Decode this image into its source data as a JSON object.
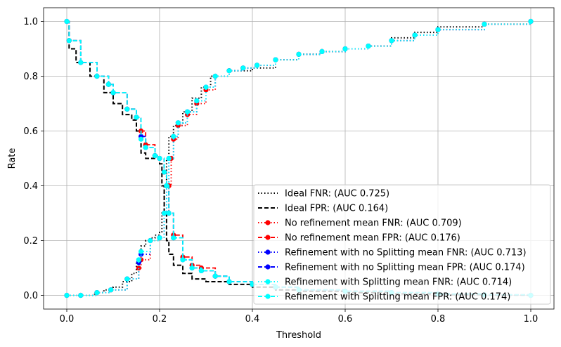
{
  "chart_data": {
    "type": "line",
    "title": "",
    "xlabel": "Threshold",
    "ylabel": "Rate",
    "xlim": [
      -0.05,
      1.05
    ],
    "ylim": [
      -0.05,
      1.05
    ],
    "xticks": [
      0.0,
      0.2,
      0.4,
      0.6,
      0.8,
      1.0
    ],
    "xtick_labels": [
      "0.0",
      "0.2",
      "0.4",
      "0.6",
      "0.8",
      "1.0"
    ],
    "yticks": [
      0.0,
      0.2,
      0.4,
      0.6,
      0.8,
      1.0
    ],
    "ytick_labels": [
      "0.0",
      "0.2",
      "0.4",
      "0.6",
      "0.8",
      "1.0"
    ],
    "grid": true,
    "legend_position": "lower-right",
    "series": [
      {
        "name": "Ideal FNR: (AUC 0.725)",
        "color": "#000000",
        "dash": "dotted",
        "marker": "none",
        "x": [
          0.0,
          0.03,
          0.06,
          0.08,
          0.1,
          0.12,
          0.14,
          0.15,
          0.16,
          0.17,
          0.18,
          0.19,
          0.2,
          0.205,
          0.21,
          0.215,
          0.22,
          0.23,
          0.25,
          0.27,
          0.29,
          0.31,
          0.35,
          0.4,
          0.45,
          0.5,
          0.55,
          0.6,
          0.65,
          0.7,
          0.75,
          0.8,
          0.9,
          1.0
        ],
        "y": [
          0.0,
          0.0,
          0.01,
          0.02,
          0.03,
          0.05,
          0.08,
          0.12,
          0.18,
          0.2,
          0.21,
          0.22,
          0.23,
          0.3,
          0.4,
          0.5,
          0.58,
          0.62,
          0.67,
          0.72,
          0.76,
          0.8,
          0.82,
          0.83,
          0.86,
          0.88,
          0.89,
          0.9,
          0.91,
          0.94,
          0.96,
          0.98,
          0.99,
          1.0
        ]
      },
      {
        "name": "Ideal FPR: (AUC 0.164)",
        "color": "#000000",
        "dash": "dashed",
        "marker": "none",
        "x": [
          0.0,
          0.005,
          0.02,
          0.05,
          0.08,
          0.1,
          0.12,
          0.14,
          0.15,
          0.16,
          0.17,
          0.19,
          0.2,
          0.205,
          0.21,
          0.215,
          0.22,
          0.23,
          0.25,
          0.27,
          0.3,
          0.35,
          0.4,
          0.45,
          0.5,
          0.6,
          0.7,
          0.8,
          0.9,
          1.0
        ],
        "y": [
          1.0,
          0.9,
          0.85,
          0.8,
          0.74,
          0.7,
          0.66,
          0.64,
          0.6,
          0.52,
          0.5,
          0.5,
          0.48,
          0.4,
          0.3,
          0.2,
          0.15,
          0.11,
          0.08,
          0.06,
          0.05,
          0.04,
          0.03,
          0.02,
          0.015,
          0.01,
          0.005,
          0.003,
          0.001,
          0.0
        ]
      },
      {
        "name": "No refinement mean FNR: (AUC 0.709)",
        "color": "#ff0000",
        "dash": "dotted",
        "marker": "circle",
        "x": [
          0.0,
          0.03,
          0.065,
          0.095,
          0.13,
          0.155,
          0.16,
          0.18,
          0.2,
          0.21,
          0.22,
          0.225,
          0.23,
          0.24,
          0.26,
          0.28,
          0.3,
          0.32,
          0.35,
          0.38,
          0.41,
          0.45,
          0.5,
          0.55,
          0.6,
          0.65,
          0.7,
          0.75,
          0.8,
          0.9,
          1.0
        ],
        "y": [
          0.0,
          0.0,
          0.01,
          0.02,
          0.06,
          0.1,
          0.13,
          0.2,
          0.21,
          0.3,
          0.4,
          0.5,
          0.57,
          0.62,
          0.66,
          0.7,
          0.75,
          0.8,
          0.82,
          0.83,
          0.84,
          0.86,
          0.88,
          0.89,
          0.9,
          0.91,
          0.93,
          0.95,
          0.97,
          0.99,
          1.0
        ]
      },
      {
        "name": "No refinement mean FPR: (AUC 0.176)",
        "color": "#ff0000",
        "dash": "dashed",
        "marker": "circle",
        "x": [
          0.0,
          0.005,
          0.03,
          0.065,
          0.09,
          0.1,
          0.13,
          0.15,
          0.16,
          0.17,
          0.19,
          0.2,
          0.21,
          0.215,
          0.22,
          0.23,
          0.25,
          0.27,
          0.29,
          0.32,
          0.35,
          0.4,
          0.45,
          0.5,
          0.6,
          0.7,
          0.8,
          0.9,
          1.0
        ],
        "y": [
          1.0,
          0.93,
          0.85,
          0.8,
          0.77,
          0.74,
          0.68,
          0.65,
          0.6,
          0.55,
          0.51,
          0.5,
          0.45,
          0.4,
          0.3,
          0.22,
          0.14,
          0.11,
          0.1,
          0.07,
          0.05,
          0.04,
          0.03,
          0.02,
          0.015,
          0.01,
          0.005,
          0.002,
          0.0
        ]
      },
      {
        "name": "Refinement with no Splitting mean FNR: (AUC 0.713)",
        "color": "#0000ff",
        "dash": "dotted",
        "marker": "circle",
        "x": [
          0.0,
          0.03,
          0.065,
          0.095,
          0.13,
          0.155,
          0.16,
          0.18,
          0.2,
          0.21,
          0.215,
          0.22,
          0.23,
          0.24,
          0.26,
          0.28,
          0.3,
          0.32,
          0.35,
          0.38,
          0.41,
          0.45,
          0.5,
          0.55,
          0.6,
          0.65,
          0.7,
          0.75,
          0.8,
          0.9,
          1.0
        ],
        "y": [
          0.0,
          0.0,
          0.01,
          0.02,
          0.06,
          0.12,
          0.15,
          0.2,
          0.21,
          0.3,
          0.4,
          0.5,
          0.58,
          0.63,
          0.67,
          0.71,
          0.76,
          0.8,
          0.82,
          0.83,
          0.84,
          0.86,
          0.88,
          0.89,
          0.9,
          0.91,
          0.93,
          0.95,
          0.97,
          0.99,
          1.0
        ]
      },
      {
        "name": "Refinement with no Splitting mean FPR: (AUC 0.174)",
        "color": "#0000ff",
        "dash": "dashed",
        "marker": "circle",
        "x": [
          0.0,
          0.005,
          0.03,
          0.065,
          0.09,
          0.1,
          0.13,
          0.15,
          0.16,
          0.17,
          0.19,
          0.2,
          0.21,
          0.215,
          0.22,
          0.23,
          0.25,
          0.27,
          0.29,
          0.32,
          0.35,
          0.4,
          0.45,
          0.5,
          0.6,
          0.7,
          0.8,
          0.9,
          1.0
        ],
        "y": [
          1.0,
          0.93,
          0.85,
          0.8,
          0.77,
          0.74,
          0.68,
          0.65,
          0.58,
          0.54,
          0.51,
          0.5,
          0.45,
          0.4,
          0.3,
          0.21,
          0.13,
          0.1,
          0.09,
          0.07,
          0.05,
          0.04,
          0.03,
          0.02,
          0.015,
          0.01,
          0.005,
          0.002,
          0.0
        ]
      },
      {
        "name": "Refinement with Splitting mean FNR: (AUC 0.714)",
        "color": "#00ffff",
        "dash": "dotted",
        "marker": "circle",
        "x": [
          0.0,
          0.03,
          0.065,
          0.095,
          0.13,
          0.155,
          0.16,
          0.18,
          0.2,
          0.21,
          0.215,
          0.22,
          0.23,
          0.24,
          0.26,
          0.28,
          0.3,
          0.32,
          0.35,
          0.38,
          0.41,
          0.45,
          0.5,
          0.55,
          0.6,
          0.65,
          0.7,
          0.75,
          0.8,
          0.9,
          1.0
        ],
        "y": [
          0.0,
          0.0,
          0.01,
          0.02,
          0.06,
          0.13,
          0.16,
          0.2,
          0.21,
          0.3,
          0.4,
          0.5,
          0.58,
          0.63,
          0.67,
          0.71,
          0.76,
          0.8,
          0.82,
          0.83,
          0.84,
          0.86,
          0.88,
          0.89,
          0.9,
          0.91,
          0.93,
          0.95,
          0.97,
          0.99,
          1.0
        ]
      },
      {
        "name": "Refinement with Splitting mean FPR: (AUC 0.174)",
        "color": "#00ffff",
        "dash": "dashed",
        "marker": "circle",
        "x": [
          0.0,
          0.005,
          0.03,
          0.065,
          0.09,
          0.1,
          0.13,
          0.15,
          0.16,
          0.17,
          0.19,
          0.2,
          0.21,
          0.215,
          0.22,
          0.23,
          0.25,
          0.27,
          0.29,
          0.32,
          0.35,
          0.4,
          0.45,
          0.5,
          0.6,
          0.7,
          0.8,
          0.9,
          1.0
        ],
        "y": [
          1.0,
          0.93,
          0.85,
          0.8,
          0.77,
          0.74,
          0.68,
          0.65,
          0.57,
          0.54,
          0.51,
          0.5,
          0.45,
          0.4,
          0.3,
          0.21,
          0.13,
          0.1,
          0.09,
          0.07,
          0.05,
          0.04,
          0.03,
          0.02,
          0.015,
          0.01,
          0.005,
          0.002,
          0.0
        ]
      }
    ]
  }
}
